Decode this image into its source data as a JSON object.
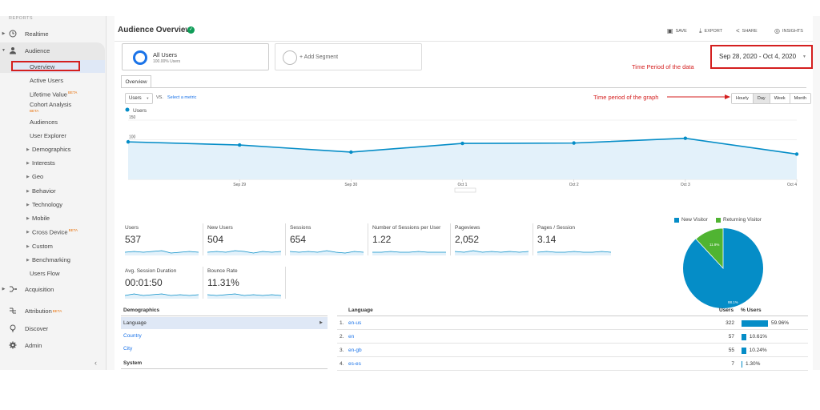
{
  "sidebar": {
    "section_label": "REPORTS",
    "realtime": "Realtime",
    "audience": "Audience",
    "audience_items": [
      {
        "label": "Overview"
      },
      {
        "label": "Active Users"
      },
      {
        "label": "Lifetime Value",
        "badge": "BETA"
      },
      {
        "label": "Cohort Analysis",
        "badge": "BETA"
      },
      {
        "label": "Audiences"
      },
      {
        "label": "User Explorer"
      },
      {
        "label": "Demographics",
        "expandable": true
      },
      {
        "label": "Interests",
        "expandable": true
      },
      {
        "label": "Geo",
        "expandable": true
      },
      {
        "label": "Behavior",
        "expandable": true
      },
      {
        "label": "Technology",
        "expandable": true
      },
      {
        "label": "Mobile",
        "expandable": true
      },
      {
        "label": "Cross Device",
        "expandable": true,
        "badge": "BETA"
      },
      {
        "label": "Custom",
        "expandable": true
      },
      {
        "label": "Benchmarking",
        "expandable": true
      },
      {
        "label": "Users Flow"
      }
    ],
    "acquisition": "Acquisition",
    "attribution": "Attribution",
    "attribution_badge": "BETA",
    "discover": "Discover",
    "admin": "Admin",
    "collapse_icon": "chevron-left-icon"
  },
  "header": {
    "title": "Audience Overview",
    "save": "SAVE",
    "export": "EXPORT",
    "share": "SHARE",
    "insights": "INSIGHTS"
  },
  "segments": {
    "all_users": "All Users",
    "all_users_sub": "100.00% Users",
    "add_segment": "+ Add Segment"
  },
  "annotations": {
    "date_note": "Time Period of the data",
    "graph_note": "Time period of the graph",
    "color": "#d41f1f"
  },
  "date_range": "Sep 28, 2020 - Oct 4, 2020",
  "controls": {
    "tab": "Overview",
    "metric": "Users",
    "vs": "VS.",
    "select_metric": "Select a metric",
    "granularity": [
      "Hourly",
      "Day",
      "Week",
      "Month"
    ],
    "granularity_selected": "Day"
  },
  "chart_data": {
    "type": "area",
    "series": [
      {
        "name": "Users",
        "values": [
          95,
          87,
          69,
          91,
          92,
          104,
          64
        ]
      }
    ],
    "ylim": [
      0,
      150
    ],
    "yticks": [
      "150",
      "100",
      "50"
    ],
    "xticks": [
      "Sep 29",
      "Sep 30",
      "Oct 1",
      "Oct 2",
      "Oct 3",
      "Oct 4"
    ],
    "color": "#058dc7",
    "grid": true
  },
  "scorecards": [
    {
      "label": "Users",
      "value": "537"
    },
    {
      "label": "New Users",
      "value": "504"
    },
    {
      "label": "Sessions",
      "value": "654"
    },
    {
      "label": "Number of Sessions per User",
      "value": "1.22"
    },
    {
      "label": "Pageviews",
      "value": "2,052"
    },
    {
      "label": "Pages / Session",
      "value": "3.14"
    },
    {
      "label": "Avg. Session Duration",
      "value": "00:01:50"
    },
    {
      "label": "Bounce Rate",
      "value": "11.31%"
    }
  ],
  "pie": {
    "legend": [
      {
        "label": "New Visitor",
        "color": "#058dc7"
      },
      {
        "label": "Returning Visitor",
        "color": "#50b432"
      }
    ],
    "new_pct": "88.1%",
    "returning_pct": "11.9%",
    "new_value": 88.1,
    "returning_value": 11.9
  },
  "demographics": {
    "title": "Demographics",
    "items": [
      "Language",
      "Country",
      "City"
    ],
    "system_title": "System"
  },
  "language_table": {
    "header": "Language",
    "users_header": "Users",
    "pct_header": "% Users",
    "rows": [
      {
        "idx": "1.",
        "lang": "en-us",
        "users": "322",
        "pct": "59.96%",
        "value": 59.96
      },
      {
        "idx": "2.",
        "lang": "en",
        "users": "57",
        "pct": "10.61%",
        "value": 10.61
      },
      {
        "idx": "3.",
        "lang": "en-gb",
        "users": "55",
        "pct": "10.24%",
        "value": 10.24
      },
      {
        "idx": "4.",
        "lang": "es-es",
        "users": "7",
        "pct": "1.30%",
        "value": 1.3
      }
    ]
  }
}
